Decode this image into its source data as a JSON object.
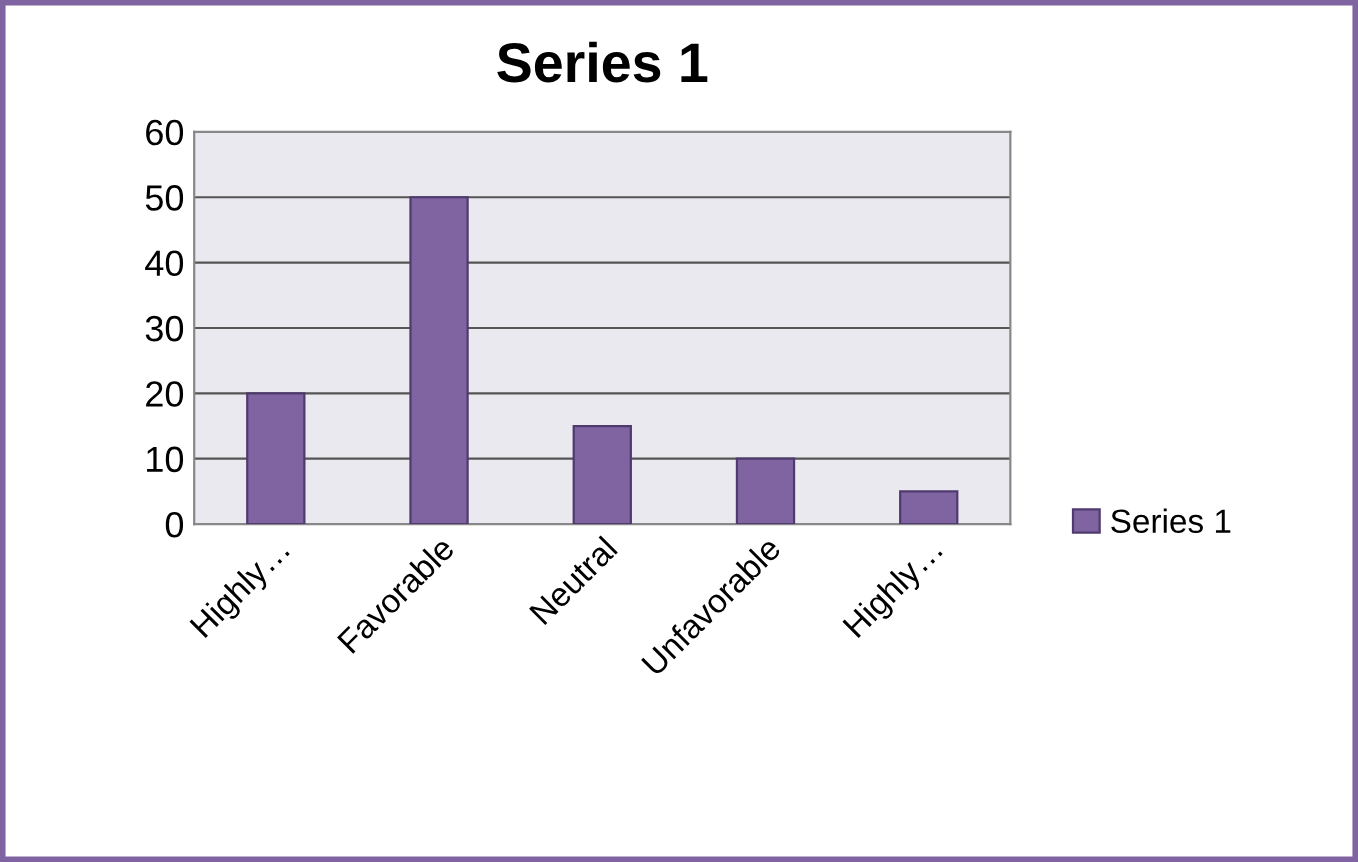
{
  "chart_data": {
    "type": "bar",
    "title": "Series 1",
    "categories": [
      "Highly…",
      "Favorable",
      "Neutral",
      "Unfavorable",
      "Highly…"
    ],
    "series": [
      {
        "name": "Series 1",
        "color": "#8064a2",
        "values": [
          20,
          50,
          15,
          10,
          5
        ]
      }
    ],
    "ylim": [
      0,
      60
    ],
    "yticks": [
      0,
      10,
      20,
      30,
      40,
      50,
      60
    ],
    "grid": "y",
    "legend": "right"
  }
}
